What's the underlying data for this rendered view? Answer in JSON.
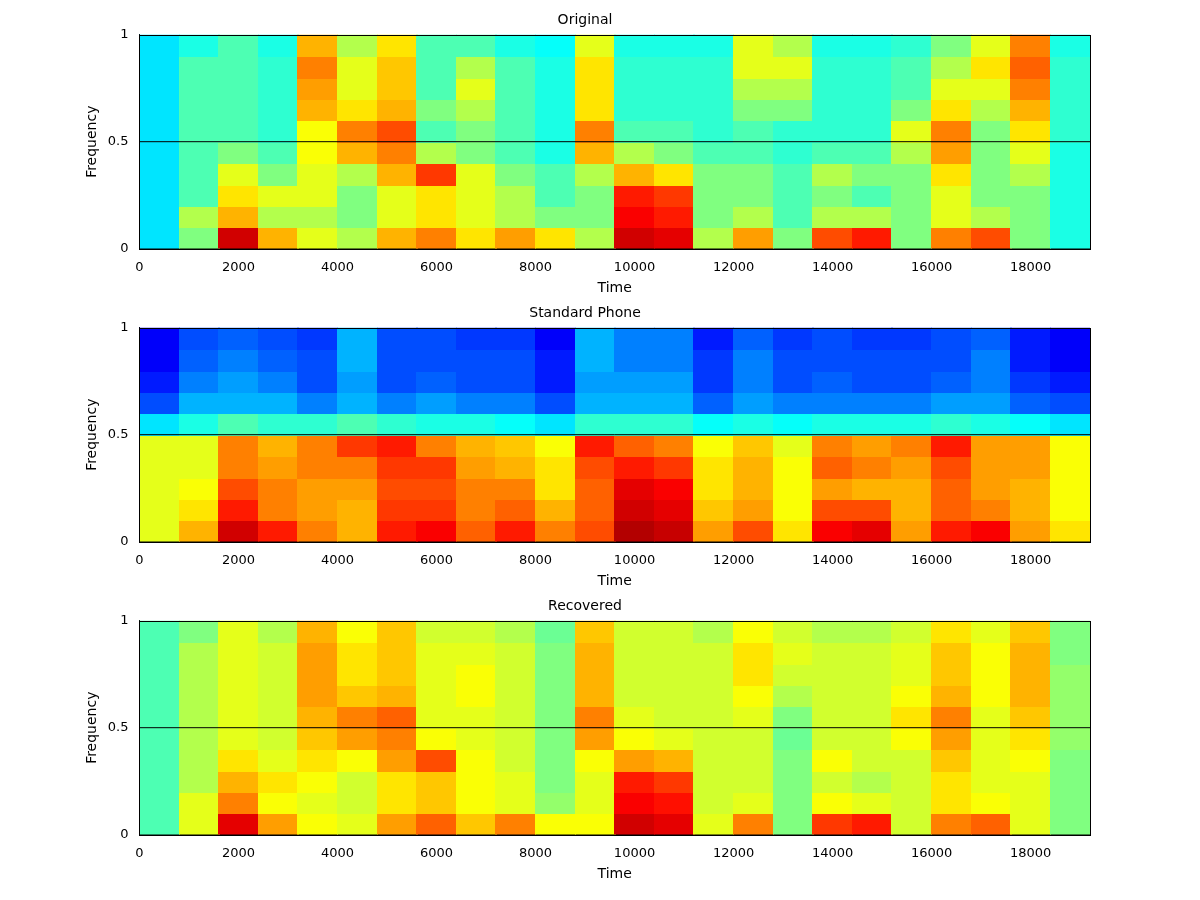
{
  "chart_data": [
    {
      "type": "heatmap",
      "title": "Original",
      "x_label": "Time",
      "y_label": "Frequency",
      "xlim": [
        0,
        19200
      ],
      "xticks": [
        0,
        2000,
        4000,
        6000,
        8000,
        10000,
        12000,
        14000,
        16000,
        18000
      ],
      "ylim": [
        0,
        1
      ],
      "yticks": [
        0,
        0.5,
        1
      ],
      "grid": false,
      "reference_line": 0.5,
      "color_range": [
        0,
        1
      ],
      "time_bins": [
        0,
        800,
        1600,
        2400,
        3200,
        4000,
        4800,
        5600,
        6400,
        7200,
        8000,
        8800,
        9600,
        10400,
        11200,
        12000,
        12800,
        13600,
        14400,
        15200,
        16000,
        16800,
        17600,
        18400,
        19200
      ],
      "frequency_bins": [
        0,
        0.1,
        0.2,
        0.3,
        0.4,
        0.5,
        0.6,
        0.7,
        0.8,
        0.9,
        1
      ],
      "cells": [
        [
          0.35,
          0.35,
          0.35,
          0.35,
          0.35,
          0.35,
          0.35,
          0.35,
          0.35,
          0.35
        ],
        [
          0.5,
          0.55,
          0.45,
          0.45,
          0.45,
          0.45,
          0.45,
          0.45,
          0.45,
          0.4
        ],
        [
          0.92,
          0.7,
          0.65,
          0.6,
          0.5,
          0.45,
          0.45,
          0.45,
          0.45,
          0.45
        ],
        [
          0.7,
          0.55,
          0.6,
          0.5,
          0.45,
          0.42,
          0.42,
          0.42,
          0.42,
          0.4
        ],
        [
          0.6,
          0.55,
          0.6,
          0.6,
          0.62,
          0.62,
          0.7,
          0.72,
          0.75,
          0.7
        ],
        [
          0.55,
          0.5,
          0.5,
          0.55,
          0.7,
          0.75,
          0.65,
          0.6,
          0.6,
          0.55
        ],
        [
          0.7,
          0.6,
          0.6,
          0.7,
          0.75,
          0.8,
          0.7,
          0.68,
          0.68,
          0.65
        ],
        [
          0.75,
          0.65,
          0.65,
          0.82,
          0.55,
          0.45,
          0.5,
          0.45,
          0.45,
          0.45
        ],
        [
          0.65,
          0.6,
          0.6,
          0.6,
          0.5,
          0.5,
          0.55,
          0.6,
          0.55,
          0.45
        ],
        [
          0.72,
          0.55,
          0.55,
          0.5,
          0.45,
          0.45,
          0.45,
          0.45,
          0.45,
          0.4
        ],
        [
          0.65,
          0.5,
          0.45,
          0.45,
          0.4,
          0.4,
          0.4,
          0.4,
          0.4,
          0.38
        ],
        [
          0.55,
          0.5,
          0.5,
          0.55,
          0.7,
          0.75,
          0.65,
          0.65,
          0.65,
          0.6
        ],
        [
          0.92,
          0.88,
          0.85,
          0.7,
          0.55,
          0.45,
          0.42,
          0.42,
          0.42,
          0.4
        ],
        [
          0.9,
          0.85,
          0.82,
          0.65,
          0.5,
          0.45,
          0.42,
          0.42,
          0.42,
          0.4
        ],
        [
          0.55,
          0.5,
          0.5,
          0.5,
          0.45,
          0.42,
          0.42,
          0.42,
          0.42,
          0.4
        ],
        [
          0.72,
          0.55,
          0.5,
          0.5,
          0.45,
          0.45,
          0.5,
          0.55,
          0.6,
          0.6
        ],
        [
          0.5,
          0.45,
          0.45,
          0.45,
          0.42,
          0.42,
          0.5,
          0.55,
          0.6,
          0.55
        ],
        [
          0.8,
          0.55,
          0.5,
          0.55,
          0.45,
          0.42,
          0.42,
          0.42,
          0.42,
          0.4
        ],
        [
          0.85,
          0.55,
          0.45,
          0.5,
          0.45,
          0.42,
          0.42,
          0.42,
          0.42,
          0.4
        ],
        [
          0.5,
          0.5,
          0.5,
          0.5,
          0.55,
          0.6,
          0.5,
          0.45,
          0.45,
          0.42
        ],
        [
          0.75,
          0.6,
          0.6,
          0.65,
          0.72,
          0.75,
          0.65,
          0.6,
          0.55,
          0.5
        ],
        [
          0.8,
          0.55,
          0.5,
          0.5,
          0.5,
          0.5,
          0.55,
          0.6,
          0.65,
          0.6
        ],
        [
          0.5,
          0.5,
          0.5,
          0.55,
          0.6,
          0.65,
          0.7,
          0.75,
          0.78,
          0.75
        ],
        [
          0.4,
          0.4,
          0.4,
          0.4,
          0.4,
          0.42,
          0.42,
          0.42,
          0.42,
          0.4
        ]
      ]
    },
    {
      "type": "heatmap",
      "title": "Standard Phone",
      "x_label": "Time",
      "y_label": "Frequency",
      "xlim": [
        0,
        19200
      ],
      "xticks": [
        0,
        2000,
        4000,
        6000,
        8000,
        10000,
        12000,
        14000,
        16000,
        18000
      ],
      "ylim": [
        0,
        1
      ],
      "yticks": [
        0,
        0.5,
        1
      ],
      "grid": false,
      "reference_line": 0.5,
      "color_range": [
        0,
        1
      ],
      "time_bins": [
        0,
        800,
        1600,
        2400,
        3200,
        4000,
        4800,
        5600,
        6400,
        7200,
        8000,
        8800,
        9600,
        10400,
        11200,
        12000,
        12800,
        13600,
        14400,
        15200,
        16000,
        16800,
        17600,
        18400,
        19200
      ],
      "frequency_bins": [
        0,
        0.1,
        0.2,
        0.3,
        0.4,
        0.5,
        0.6,
        0.7,
        0.8,
        0.9,
        1
      ],
      "cells": [
        [
          0.6,
          0.6,
          0.6,
          0.6,
          0.6,
          0.35,
          0.2,
          0.15,
          0.12,
          0.12
        ],
        [
          0.7,
          0.65,
          0.62,
          0.6,
          0.6,
          0.4,
          0.3,
          0.25,
          0.22,
          0.2
        ],
        [
          0.92,
          0.85,
          0.8,
          0.75,
          0.75,
          0.45,
          0.3,
          0.28,
          0.25,
          0.22
        ],
        [
          0.85,
          0.75,
          0.75,
          0.72,
          0.7,
          0.42,
          0.3,
          0.25,
          0.22,
          0.2
        ],
        [
          0.75,
          0.72,
          0.72,
          0.75,
          0.75,
          0.42,
          0.25,
          0.2,
          0.2,
          0.18
        ],
        [
          0.7,
          0.7,
          0.72,
          0.75,
          0.82,
          0.45,
          0.3,
          0.28,
          0.3,
          0.3
        ],
        [
          0.85,
          0.82,
          0.8,
          0.82,
          0.85,
          0.42,
          0.25,
          0.2,
          0.2,
          0.2
        ],
        [
          0.88,
          0.82,
          0.8,
          0.82,
          0.75,
          0.4,
          0.28,
          0.22,
          0.2,
          0.2
        ],
        [
          0.78,
          0.75,
          0.75,
          0.72,
          0.7,
          0.4,
          0.25,
          0.2,
          0.2,
          0.18
        ],
        [
          0.85,
          0.78,
          0.75,
          0.7,
          0.68,
          0.38,
          0.25,
          0.2,
          0.2,
          0.18
        ],
        [
          0.75,
          0.7,
          0.65,
          0.65,
          0.62,
          0.35,
          0.2,
          0.15,
          0.15,
          0.12
        ],
        [
          0.8,
          0.78,
          0.78,
          0.8,
          0.85,
          0.42,
          0.3,
          0.28,
          0.3,
          0.3
        ],
        [
          0.95,
          0.92,
          0.9,
          0.85,
          0.78,
          0.42,
          0.3,
          0.28,
          0.25,
          0.25
        ],
        [
          0.93,
          0.9,
          0.88,
          0.82,
          0.75,
          0.42,
          0.3,
          0.28,
          0.25,
          0.25
        ],
        [
          0.72,
          0.68,
          0.65,
          0.65,
          0.62,
          0.38,
          0.22,
          0.18,
          0.18,
          0.15
        ],
        [
          0.8,
          0.72,
          0.7,
          0.7,
          0.68,
          0.4,
          0.28,
          0.25,
          0.25,
          0.22
        ],
        [
          0.65,
          0.62,
          0.62,
          0.62,
          0.6,
          0.38,
          0.25,
          0.2,
          0.2,
          0.18
        ],
        [
          0.88,
          0.8,
          0.72,
          0.78,
          0.75,
          0.4,
          0.25,
          0.22,
          0.2,
          0.2
        ],
        [
          0.9,
          0.8,
          0.7,
          0.75,
          0.72,
          0.4,
          0.25,
          0.2,
          0.2,
          0.18
        ],
        [
          0.72,
          0.7,
          0.7,
          0.72,
          0.75,
          0.4,
          0.25,
          0.2,
          0.2,
          0.18
        ],
        [
          0.85,
          0.78,
          0.78,
          0.8,
          0.85,
          0.42,
          0.28,
          0.22,
          0.2,
          0.2
        ],
        [
          0.88,
          0.75,
          0.72,
          0.72,
          0.72,
          0.4,
          0.28,
          0.25,
          0.25,
          0.22
        ],
        [
          0.72,
          0.7,
          0.7,
          0.72,
          0.72,
          0.38,
          0.22,
          0.18,
          0.15,
          0.15
        ],
        [
          0.65,
          0.62,
          0.62,
          0.62,
          0.62,
          0.35,
          0.2,
          0.15,
          0.12,
          0.12
        ]
      ]
    },
    {
      "type": "heatmap",
      "title": "Recovered",
      "x_label": "Time",
      "y_label": "Frequency",
      "xlim": [
        0,
        19200
      ],
      "xticks": [
        0,
        2000,
        4000,
        6000,
        8000,
        10000,
        12000,
        14000,
        16000,
        18000
      ],
      "ylim": [
        0,
        1
      ],
      "yticks": [
        0,
        0.5,
        1
      ],
      "grid": false,
      "reference_line": 0.5,
      "color_range": [
        0,
        1
      ],
      "time_bins": [
        0,
        800,
        1600,
        2400,
        3200,
        4000,
        4800,
        5600,
        6400,
        7200,
        8000,
        8800,
        9600,
        10400,
        11200,
        12000,
        12800,
        13600,
        14400,
        15200,
        16000,
        16800,
        17600,
        18400,
        19200
      ],
      "frequency_bins": [
        0,
        0.1,
        0.2,
        0.3,
        0.4,
        0.5,
        0.6,
        0.7,
        0.8,
        0.9,
        1
      ],
      "cells": [
        [
          0.45,
          0.45,
          0.45,
          0.45,
          0.45,
          0.45,
          0.45,
          0.45,
          0.45,
          0.45
        ],
        [
          0.6,
          0.6,
          0.55,
          0.55,
          0.55,
          0.55,
          0.55,
          0.55,
          0.55,
          0.5
        ],
        [
          0.9,
          0.75,
          0.7,
          0.65,
          0.6,
          0.6,
          0.6,
          0.6,
          0.6,
          0.6
        ],
        [
          0.72,
          0.62,
          0.65,
          0.6,
          0.58,
          0.58,
          0.58,
          0.58,
          0.58,
          0.55
        ],
        [
          0.62,
          0.6,
          0.62,
          0.65,
          0.68,
          0.7,
          0.72,
          0.72,
          0.72,
          0.7
        ],
        [
          0.6,
          0.58,
          0.58,
          0.62,
          0.72,
          0.75,
          0.68,
          0.65,
          0.65,
          0.62
        ],
        [
          0.72,
          0.65,
          0.65,
          0.72,
          0.75,
          0.78,
          0.7,
          0.68,
          0.68,
          0.68
        ],
        [
          0.78,
          0.68,
          0.68,
          0.8,
          0.62,
          0.6,
          0.6,
          0.6,
          0.6,
          0.58
        ],
        [
          0.68,
          0.62,
          0.62,
          0.62,
          0.6,
          0.6,
          0.62,
          0.62,
          0.6,
          0.58
        ],
        [
          0.75,
          0.6,
          0.6,
          0.58,
          0.58,
          0.58,
          0.58,
          0.58,
          0.58,
          0.55
        ],
        [
          0.62,
          0.52,
          0.5,
          0.5,
          0.5,
          0.5,
          0.5,
          0.5,
          0.5,
          0.48
        ],
        [
          0.62,
          0.6,
          0.6,
          0.62,
          0.72,
          0.75,
          0.7,
          0.7,
          0.7,
          0.68
        ],
        [
          0.92,
          0.88,
          0.85,
          0.72,
          0.62,
          0.6,
          0.58,
          0.58,
          0.58,
          0.58
        ],
        [
          0.9,
          0.86,
          0.82,
          0.7,
          0.6,
          0.58,
          0.58,
          0.58,
          0.58,
          0.58
        ],
        [
          0.6,
          0.58,
          0.58,
          0.58,
          0.58,
          0.58,
          0.58,
          0.58,
          0.58,
          0.55
        ],
        [
          0.75,
          0.6,
          0.58,
          0.58,
          0.58,
          0.6,
          0.62,
          0.65,
          0.65,
          0.62
        ],
        [
          0.5,
          0.5,
          0.5,
          0.5,
          0.48,
          0.5,
          0.55,
          0.58,
          0.6,
          0.58
        ],
        [
          0.82,
          0.62,
          0.58,
          0.62,
          0.58,
          0.58,
          0.58,
          0.58,
          0.58,
          0.55
        ],
        [
          0.85,
          0.6,
          0.55,
          0.58,
          0.58,
          0.58,
          0.58,
          0.58,
          0.58,
          0.55
        ],
        [
          0.58,
          0.58,
          0.58,
          0.58,
          0.62,
          0.65,
          0.62,
          0.6,
          0.6,
          0.58
        ],
        [
          0.75,
          0.65,
          0.65,
          0.68,
          0.72,
          0.75,
          0.7,
          0.68,
          0.68,
          0.65
        ],
        [
          0.78,
          0.62,
          0.6,
          0.6,
          0.6,
          0.6,
          0.62,
          0.62,
          0.62,
          0.6
        ],
        [
          0.6,
          0.6,
          0.6,
          0.62,
          0.65,
          0.68,
          0.7,
          0.7,
          0.7,
          0.68
        ],
        [
          0.5,
          0.5,
          0.5,
          0.5,
          0.52,
          0.52,
          0.52,
          0.52,
          0.5,
          0.5
        ]
      ]
    }
  ]
}
